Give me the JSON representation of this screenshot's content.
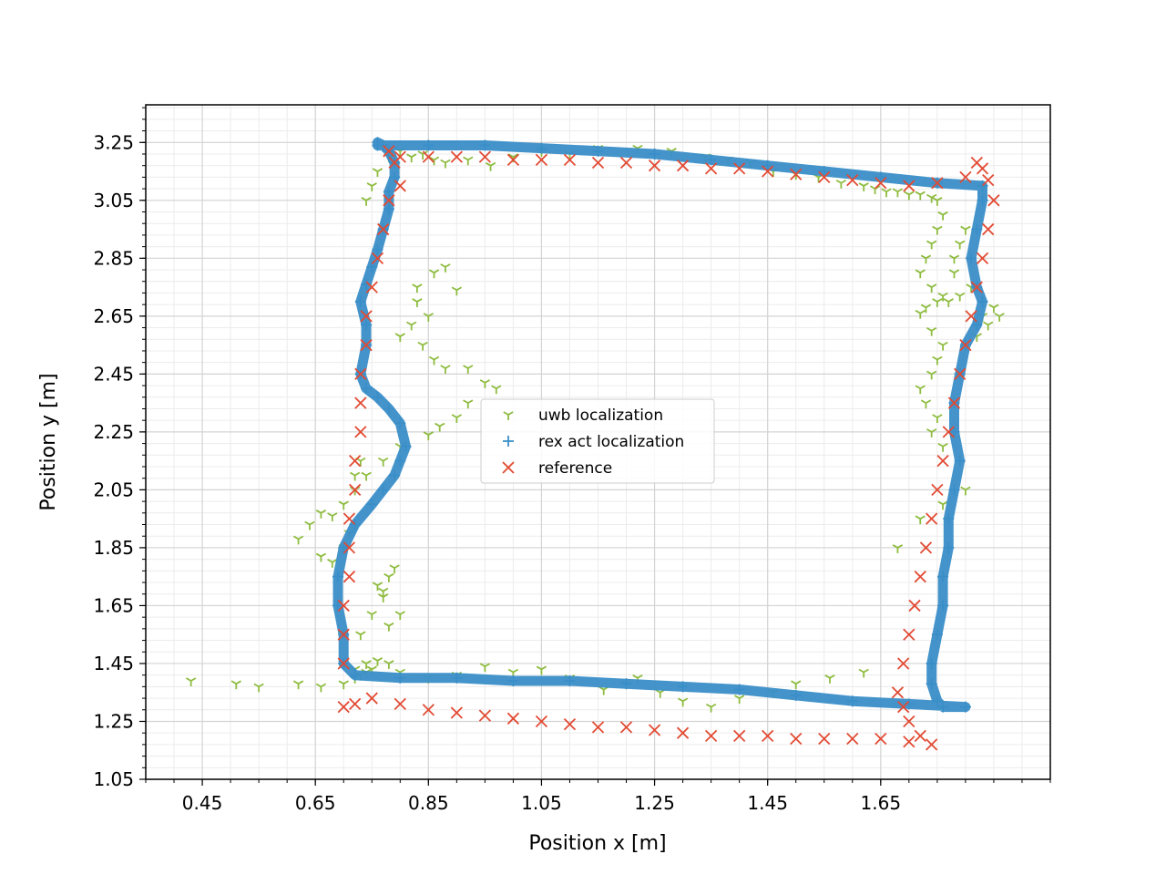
{
  "chart_data": {
    "type": "scatter",
    "title": "",
    "xlabel": "Position x [m]",
    "ylabel": "Position y [m]",
    "xlim": [
      0.35,
      1.95
    ],
    "ylim": [
      1.05,
      3.38
    ],
    "xticks": [
      "0.45",
      "0.65",
      "0.85",
      "1.05",
      "1.25",
      "1.45",
      "1.65"
    ],
    "yticks": [
      "1.05",
      "1.25",
      "1.45",
      "1.65",
      "1.85",
      "2.05",
      "2.25",
      "2.45",
      "2.65",
      "2.85",
      "3.05",
      "3.25"
    ],
    "grid": true,
    "legend_position": "center",
    "series": [
      {
        "name": "uwb localization",
        "color": "#8ebc3f",
        "marker": "tri_down",
        "x": [
          0.43,
          0.51,
          0.55,
          0.62,
          0.66,
          0.7,
          0.72,
          0.74,
          0.73,
          0.75,
          0.77,
          0.76,
          0.78,
          0.79,
          0.77,
          0.78,
          0.8,
          0.83,
          0.86,
          0.88,
          0.9,
          0.83,
          0.85,
          0.82,
          0.8,
          0.84,
          0.86,
          0.88,
          0.92,
          0.95,
          0.97,
          0.92,
          0.9,
          0.87,
          0.85,
          0.8,
          0.77,
          0.74,
          0.72,
          0.7,
          0.68,
          0.66,
          0.64,
          0.62,
          0.66,
          0.68,
          0.7,
          0.71,
          0.72,
          0.73,
          0.74,
          0.75,
          0.76,
          0.78,
          0.8,
          0.82,
          0.84,
          0.86,
          0.88,
          0.92,
          0.96,
          1.0,
          1.05,
          1.1,
          1.15,
          1.22,
          1.28,
          1.34,
          1.38,
          1.42,
          1.46,
          1.5,
          1.54,
          1.58,
          1.62,
          1.64,
          1.66,
          1.68,
          1.7,
          1.72,
          1.74,
          1.75,
          1.76,
          1.75,
          1.74,
          1.73,
          1.72,
          1.74,
          1.76,
          1.75,
          1.73,
          1.72,
          1.74,
          1.76,
          1.75,
          1.74,
          1.72,
          1.73,
          1.75,
          1.74,
          1.76,
          1.78,
          1.79,
          1.8,
          1.78,
          1.77,
          1.79,
          1.81,
          1.83,
          1.85,
          1.86,
          1.84,
          1.82,
          1.8,
          1.76,
          1.72,
          1.68,
          1.62,
          1.56,
          1.5,
          1.46,
          1.4,
          1.35,
          1.3,
          1.26,
          1.22,
          1.2,
          1.16,
          1.1,
          1.05,
          1.0,
          0.95,
          0.9,
          0.85,
          0.8,
          0.78,
          0.76,
          0.75,
          0.74,
          0.73,
          0.72
        ],
        "y": [
          1.39,
          1.38,
          1.37,
          1.38,
          1.37,
          1.38,
          1.4,
          1.45,
          1.55,
          1.62,
          1.68,
          1.72,
          1.75,
          1.78,
          1.7,
          1.58,
          1.62,
          2.75,
          2.8,
          2.82,
          2.74,
          2.7,
          2.65,
          2.62,
          2.58,
          2.55,
          2.5,
          2.47,
          2.47,
          2.42,
          2.4,
          2.35,
          2.3,
          2.27,
          2.24,
          2.2,
          2.15,
          2.1,
          2.05,
          2.0,
          1.96,
          1.97,
          1.93,
          1.88,
          1.82,
          1.8,
          1.85,
          1.9,
          2.1,
          2.15,
          3.05,
          3.1,
          3.15,
          3.2,
          3.22,
          3.2,
          3.21,
          3.19,
          3.18,
          3.19,
          3.17,
          3.2,
          3.22,
          3.21,
          3.23,
          3.23,
          3.22,
          3.2,
          3.19,
          3.18,
          3.15,
          3.14,
          3.13,
          3.11,
          3.1,
          3.09,
          3.08,
          3.08,
          3.07,
          3.07,
          3.06,
          3.05,
          3.0,
          2.95,
          2.9,
          2.85,
          2.8,
          2.75,
          2.72,
          2.7,
          2.68,
          2.66,
          2.6,
          2.55,
          2.5,
          2.45,
          2.4,
          2.35,
          2.3,
          2.25,
          2.2,
          2.85,
          2.9,
          2.95,
          2.8,
          2.7,
          2.72,
          2.75,
          2.65,
          2.68,
          2.65,
          2.62,
          2.58,
          2.05,
          2.0,
          1.95,
          1.85,
          1.42,
          1.4,
          1.38,
          1.35,
          1.33,
          1.3,
          1.32,
          1.35,
          1.4,
          1.38,
          1.36,
          1.4,
          1.43,
          1.42,
          1.44,
          1.41,
          1.4,
          1.42,
          1.45,
          1.46,
          1.43,
          1.42,
          1.41,
          1.43
        ]
      },
      {
        "name": "rex act localization",
        "color": "#3a8ec8",
        "marker": "plus",
        "x": [
          0.76,
          0.85,
          0.95,
          1.05,
          1.15,
          1.25,
          1.35,
          1.45,
          1.55,
          1.65,
          1.75,
          1.83,
          1.83,
          1.82,
          1.81,
          1.82,
          1.83,
          1.82,
          1.8,
          1.79,
          1.78,
          1.78,
          1.79,
          1.78,
          1.77,
          1.77,
          1.76,
          1.76,
          1.75,
          1.74,
          1.74,
          1.75,
          1.76,
          1.8,
          1.7,
          1.6,
          1.5,
          1.4,
          1.3,
          1.2,
          1.1,
          1.0,
          0.9,
          0.8,
          0.72,
          0.7,
          0.7,
          0.69,
          0.69,
          0.7,
          0.72,
          0.75,
          0.77,
          0.79,
          0.8,
          0.81,
          0.8,
          0.78,
          0.76,
          0.74,
          0.73,
          0.74,
          0.74,
          0.73,
          0.74,
          0.75,
          0.76,
          0.77,
          0.78,
          0.78,
          0.79,
          0.79,
          0.78,
          0.77,
          0.76
        ],
        "y": [
          3.24,
          3.24,
          3.24,
          3.23,
          3.22,
          3.21,
          3.19,
          3.17,
          3.15,
          3.13,
          3.11,
          3.1,
          3.05,
          2.95,
          2.85,
          2.75,
          2.7,
          2.62,
          2.55,
          2.45,
          2.35,
          2.25,
          2.15,
          2.05,
          1.95,
          1.85,
          1.75,
          1.65,
          1.55,
          1.45,
          1.38,
          1.32,
          1.3,
          1.3,
          1.31,
          1.32,
          1.34,
          1.36,
          1.37,
          1.38,
          1.39,
          1.39,
          1.4,
          1.4,
          1.41,
          1.45,
          1.55,
          1.65,
          1.75,
          1.85,
          1.93,
          2.0,
          2.05,
          2.1,
          2.15,
          2.2,
          2.28,
          2.33,
          2.37,
          2.4,
          2.45,
          2.55,
          2.62,
          2.7,
          2.76,
          2.82,
          2.88,
          2.95,
          3.02,
          3.08,
          3.13,
          3.18,
          3.22,
          3.24,
          3.25
        ]
      },
      {
        "name": "reference",
        "color": "#e24a33",
        "marker": "x",
        "x": [
          0.7,
          0.72,
          0.75,
          0.8,
          0.85,
          0.9,
          0.95,
          1.0,
          1.05,
          1.1,
          1.15,
          1.2,
          1.25,
          1.3,
          1.35,
          1.4,
          1.45,
          1.5,
          1.55,
          1.6,
          1.65,
          1.7,
          1.74,
          1.72,
          1.7,
          1.69,
          1.68,
          1.69,
          1.7,
          1.71,
          1.72,
          1.73,
          1.74,
          1.75,
          1.76,
          1.77,
          1.78,
          1.79,
          1.8,
          1.81,
          1.82,
          1.83,
          1.84,
          1.85,
          1.84,
          1.83,
          1.82,
          1.8,
          1.75,
          1.7,
          1.65,
          1.6,
          1.55,
          1.5,
          1.45,
          1.4,
          1.35,
          1.3,
          1.25,
          1.2,
          1.15,
          1.1,
          1.05,
          1.0,
          0.95,
          0.9,
          0.85,
          0.8,
          0.78,
          0.79,
          0.8,
          0.78,
          0.77,
          0.76,
          0.75,
          0.74,
          0.74,
          0.73,
          0.73,
          0.73,
          0.72,
          0.72,
          0.71,
          0.71,
          0.71,
          0.7,
          0.7,
          0.7
        ],
        "y": [
          1.3,
          1.31,
          1.33,
          1.31,
          1.29,
          1.28,
          1.27,
          1.26,
          1.25,
          1.24,
          1.23,
          1.23,
          1.22,
          1.21,
          1.2,
          1.2,
          1.2,
          1.19,
          1.19,
          1.19,
          1.19,
          1.18,
          1.17,
          1.2,
          1.25,
          1.3,
          1.35,
          1.45,
          1.55,
          1.65,
          1.75,
          1.85,
          1.95,
          2.05,
          2.15,
          2.25,
          2.35,
          2.45,
          2.55,
          2.65,
          2.75,
          2.85,
          2.95,
          3.05,
          3.12,
          3.16,
          3.18,
          3.13,
          3.11,
          3.1,
          3.11,
          3.12,
          3.13,
          3.14,
          3.15,
          3.16,
          3.16,
          3.17,
          3.17,
          3.18,
          3.18,
          3.19,
          3.19,
          3.19,
          3.2,
          3.2,
          3.2,
          3.2,
          3.22,
          3.18,
          3.1,
          3.05,
          2.95,
          2.85,
          2.75,
          2.65,
          2.55,
          2.45,
          2.35,
          2.25,
          2.15,
          2.05,
          1.95,
          1.85,
          1.75,
          1.65,
          1.55,
          1.45
        ]
      }
    ]
  }
}
